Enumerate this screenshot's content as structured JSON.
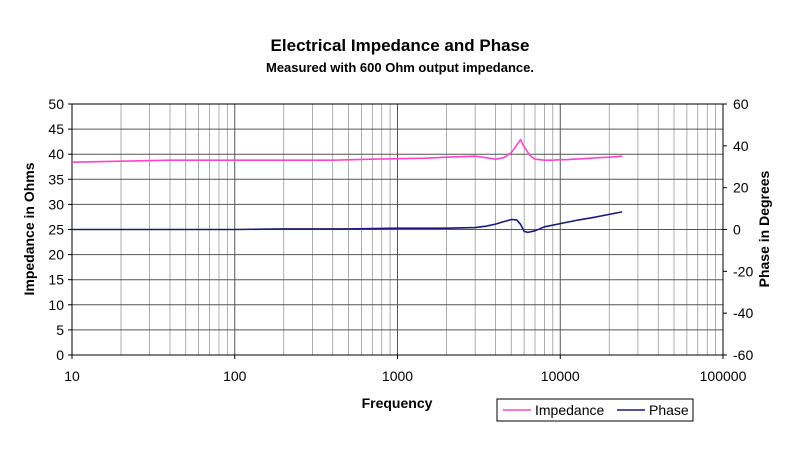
{
  "chart_data": {
    "type": "line",
    "title": "Electrical Impedance and Phase",
    "subtitle": "Measured with 600 Ohm output impedance.",
    "xlabel": "Frequency",
    "ylabel": "Impedance in Ohms",
    "y2label": "Phase in Degrees",
    "xscale": "log",
    "xlim": [
      10,
      100000
    ],
    "ylim": [
      0,
      50
    ],
    "y2lim": [
      -60,
      60
    ],
    "x_ticks": [
      "10",
      "100",
      "1000",
      "10000",
      "100000"
    ],
    "y_ticks": [
      "0",
      "5",
      "10",
      "15",
      "20",
      "25",
      "30",
      "35",
      "40",
      "45",
      "50"
    ],
    "y2_ticks": [
      "-60",
      "-40",
      "-20",
      "0",
      "20",
      "40",
      "60"
    ],
    "grid": true,
    "legend_position": "bottom-right",
    "series": [
      {
        "name": "Impedance",
        "axis": "left",
        "color": "#ff44cc",
        "x": [
          10,
          20,
          40,
          100,
          200,
          400,
          700,
          1000,
          1500,
          2000,
          3000,
          3500,
          4000,
          4500,
          5000,
          5400,
          5700,
          6000,
          6500,
          7000,
          8000,
          9000,
          10000,
          11000,
          12000,
          14000,
          17000,
          20000,
          24000
        ],
        "y": [
          38.4,
          38.6,
          38.8,
          38.8,
          38.8,
          38.8,
          39.0,
          39.1,
          39.2,
          39.4,
          39.6,
          39.3,
          39.0,
          39.3,
          40.3,
          41.8,
          42.9,
          41.5,
          39.8,
          39.0,
          38.8,
          38.8,
          38.9,
          38.9,
          39.0,
          39.1,
          39.3,
          39.4,
          39.6
        ]
      },
      {
        "name": "Phase",
        "axis": "right",
        "color": "#1a1a7a",
        "x": [
          10,
          50,
          100,
          200,
          500,
          1000,
          2000,
          3000,
          3500,
          4000,
          4500,
          5000,
          5400,
          5700,
          6000,
          6300,
          7000,
          8000,
          10000,
          13000,
          16000,
          20000,
          24000
        ],
        "y": [
          0,
          0,
          0,
          0.3,
          0.3,
          0.6,
          0.6,
          0.9,
          1.6,
          2.6,
          3.8,
          4.8,
          4.6,
          2.5,
          -0.8,
          -1.4,
          -0.6,
          1.3,
          2.8,
          4.6,
          5.8,
          7.2,
          8.4
        ]
      }
    ]
  }
}
